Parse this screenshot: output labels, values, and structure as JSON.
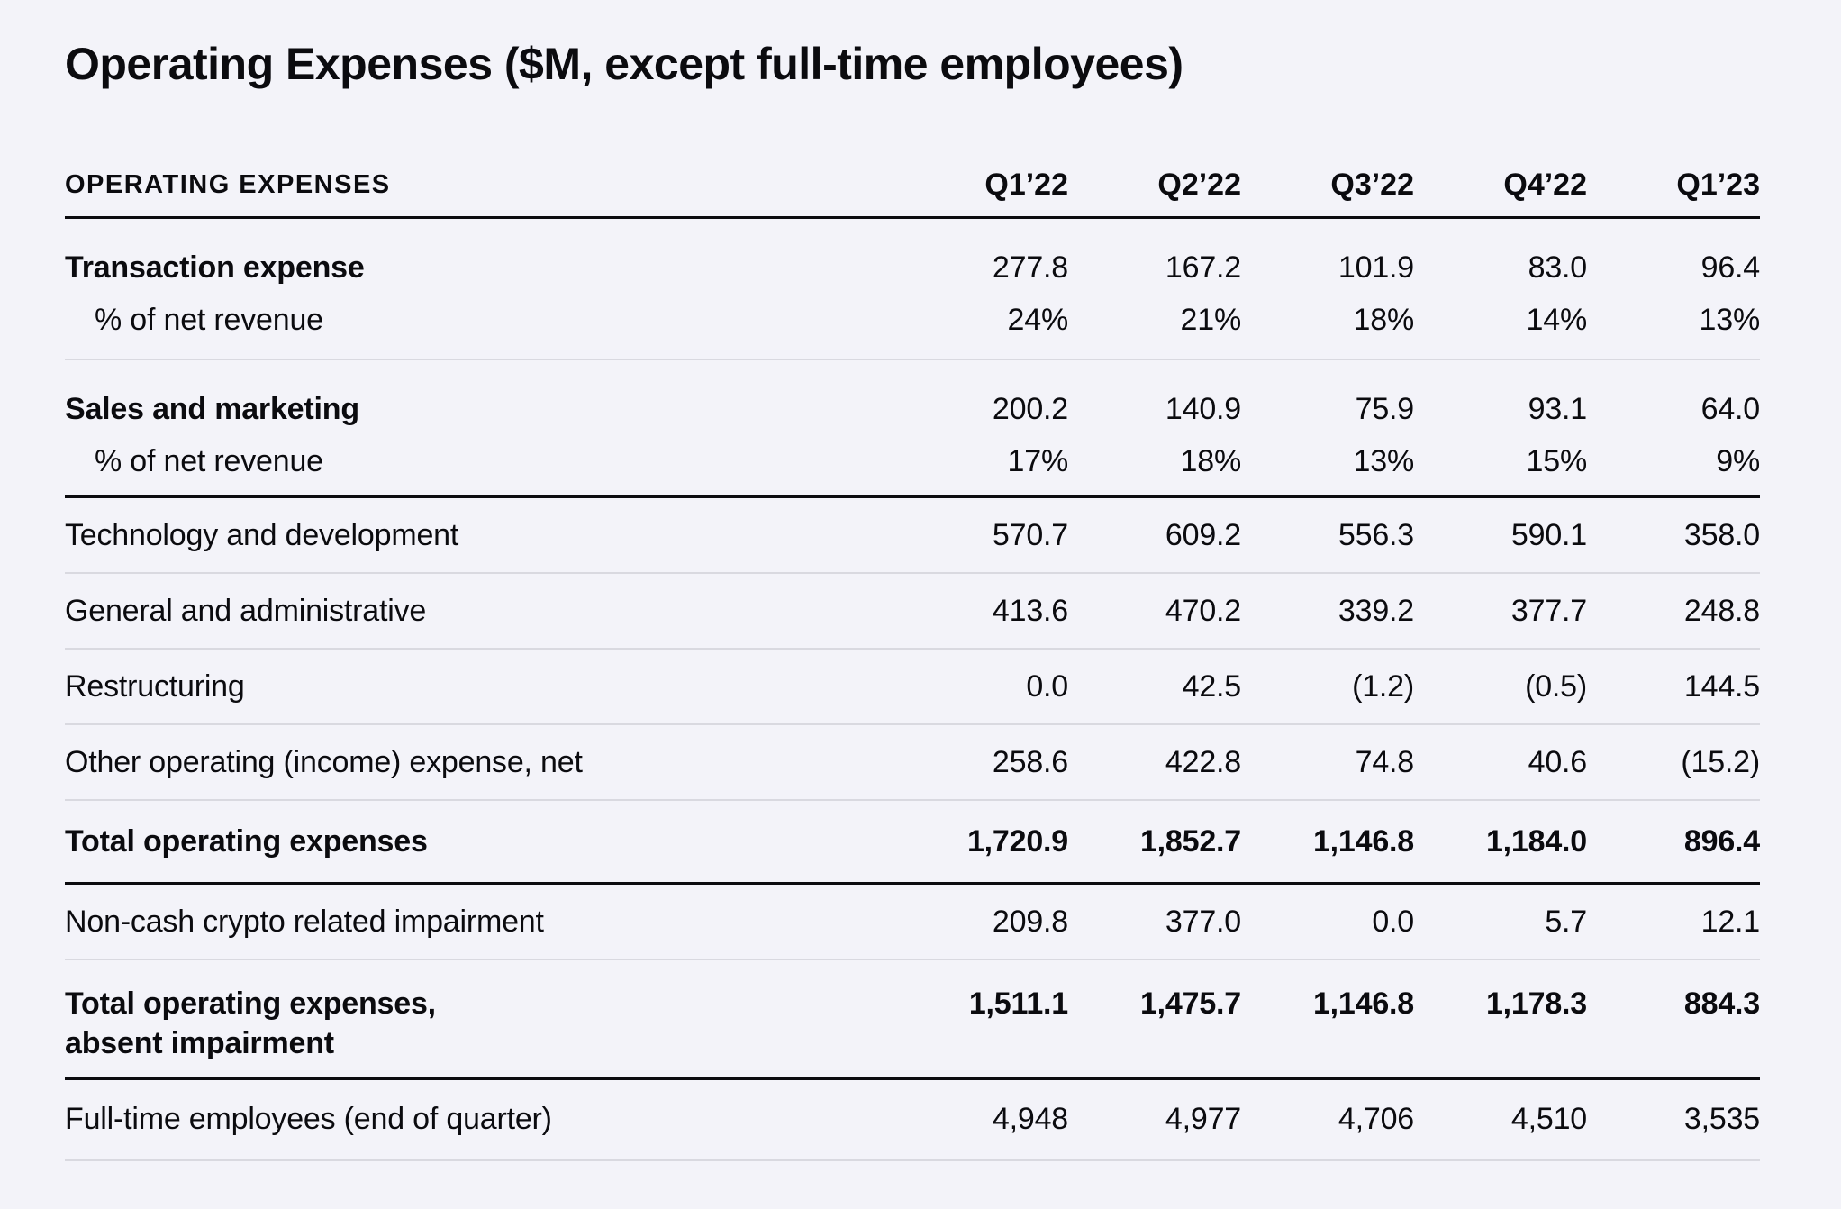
{
  "title": "Operating Expenses ($M, except full-time employees)",
  "colors": {
    "background": "#f3f3f9",
    "text": "#0b0b0f",
    "rule_light": "#d9d9e0",
    "rule_dark": "#0b0b0f"
  },
  "table": {
    "header": {
      "label": "OPERATING EXPENSES",
      "columns": [
        "Q1’22",
        "Q2’22",
        "Q3’22",
        "Q4’22",
        "Q1’23"
      ]
    },
    "rows": [
      {
        "label": "Transaction expense",
        "emphasis": "bold",
        "values": [
          "277.8",
          "167.2",
          "101.9",
          "83.0",
          "96.4"
        ]
      },
      {
        "label": "% of net revenue",
        "emphasis": "sub",
        "values": [
          "24%",
          "21%",
          "18%",
          "14%",
          "13%"
        ]
      },
      {
        "label": "Sales and marketing",
        "emphasis": "bold",
        "values": [
          "200.2",
          "140.9",
          "75.9",
          "93.1",
          "64.0"
        ]
      },
      {
        "label": "% of net revenue",
        "emphasis": "sub",
        "values": [
          "17%",
          "18%",
          "13%",
          "15%",
          "9%"
        ]
      },
      {
        "label": "Technology and development",
        "emphasis": "regular",
        "values": [
          "570.7",
          "609.2",
          "556.3",
          "590.1",
          "358.0"
        ]
      },
      {
        "label": "General and administrative",
        "emphasis": "regular",
        "values": [
          "413.6",
          "470.2",
          "339.2",
          "377.7",
          "248.8"
        ]
      },
      {
        "label": "Restructuring",
        "emphasis": "regular",
        "values": [
          "0.0",
          "42.5",
          "(1.2)",
          "(0.5)",
          "144.5"
        ]
      },
      {
        "label": "Other operating (income) expense, net",
        "emphasis": "regular",
        "values": [
          "258.6",
          "422.8",
          "74.8",
          "40.6",
          "(15.2)"
        ]
      },
      {
        "label": "Total operating expenses",
        "emphasis": "total",
        "values": [
          "1,720.9",
          "1,852.7",
          "1,146.8",
          "1,184.0",
          "896.4"
        ]
      },
      {
        "label": "Non-cash crypto related impairment",
        "emphasis": "regular",
        "values": [
          "209.8",
          "377.0",
          "0.0",
          "5.7",
          "12.1"
        ]
      },
      {
        "label": "Total operating expenses,\nabsent impairment",
        "emphasis": "total",
        "values": [
          "1,511.1",
          "1,475.7",
          "1,146.8",
          "1,178.3",
          "884.3"
        ]
      },
      {
        "label": "Full-time employees (end of quarter)",
        "emphasis": "regular",
        "values": [
          "4,948",
          "4,977",
          "4,706",
          "4,510",
          "3,535"
        ]
      }
    ]
  }
}
